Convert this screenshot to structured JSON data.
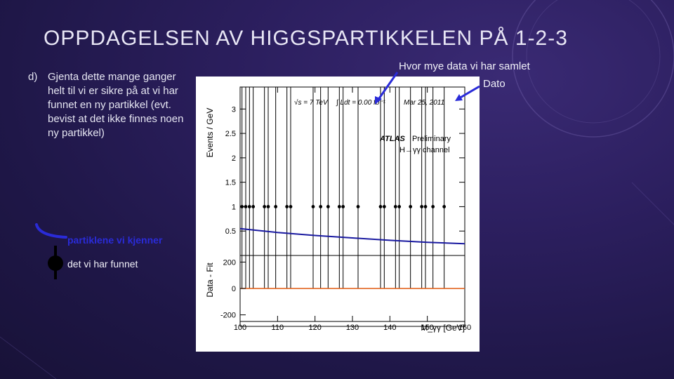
{
  "slide": {
    "title": "OPPDAGELSEN AV HIGGSPARTIKKELEN PÅ 1-2-3",
    "bullet_letter": "d)",
    "bullet_text": "Gjenta dette mange ganger helt til vi er sikre på at vi har funnet en ny partikkel (evt. bevist at det ikke finnes noen ny partikkel)",
    "legend_known": "partiklene vi kjenner",
    "legend_found": "det vi har funnet",
    "annotation_data": "Hvor mye data vi har samlet",
    "annotation_date": "Dato",
    "colors": {
      "known_curve": "#2a2bd8",
      "arrow": "#2a2bd8",
      "fit_line": "#1a1aa0",
      "residual_line": "#e05a10"
    }
  },
  "chart_data": {
    "type": "scatter",
    "plot_text": {
      "energy": "√s = 7 TeV",
      "luminosity": "∫ Ldt = 0.00 fb⁻¹",
      "date": "Mar 25, 2011",
      "experiment": "ATLAS",
      "status": "Preliminary",
      "channel": "H→γγ channel"
    },
    "top_panel": {
      "ylabel": "Events / GeV",
      "yticks": [
        "0.5",
        "1",
        "1.5",
        "2",
        "2.5",
        "3"
      ],
      "ylim": [
        0,
        3.45
      ],
      "points_x": [
        100.5,
        101.5,
        102.5,
        103.5,
        106.5,
        107.5,
        109.5,
        112.5,
        113.5,
        119.5,
        121.5,
        123.5,
        126.5,
        127.5,
        131.5,
        137.5,
        138.5,
        141.5,
        142.5,
        145.5,
        148.5,
        149.5,
        151.5,
        154.5
      ],
      "points_y": 1,
      "error_bars_up_to": 3.45,
      "fit_curve": {
        "x": [
          100,
          110,
          120,
          130,
          140,
          150,
          160
        ],
        "y": [
          0.55,
          0.47,
          0.41,
          0.36,
          0.31,
          0.27,
          0.24
        ]
      }
    },
    "bottom_panel": {
      "ylabel": "Data - Fit",
      "yticks": [
        "-200",
        "0",
        "200"
      ],
      "ylim": [
        -250,
        250
      ],
      "residual": 0
    },
    "xlabel": "M_γγ [GeV]",
    "xticks": [
      "100",
      "110",
      "120",
      "130",
      "140",
      "150",
      "160"
    ],
    "xlim": [
      100,
      160
    ]
  }
}
